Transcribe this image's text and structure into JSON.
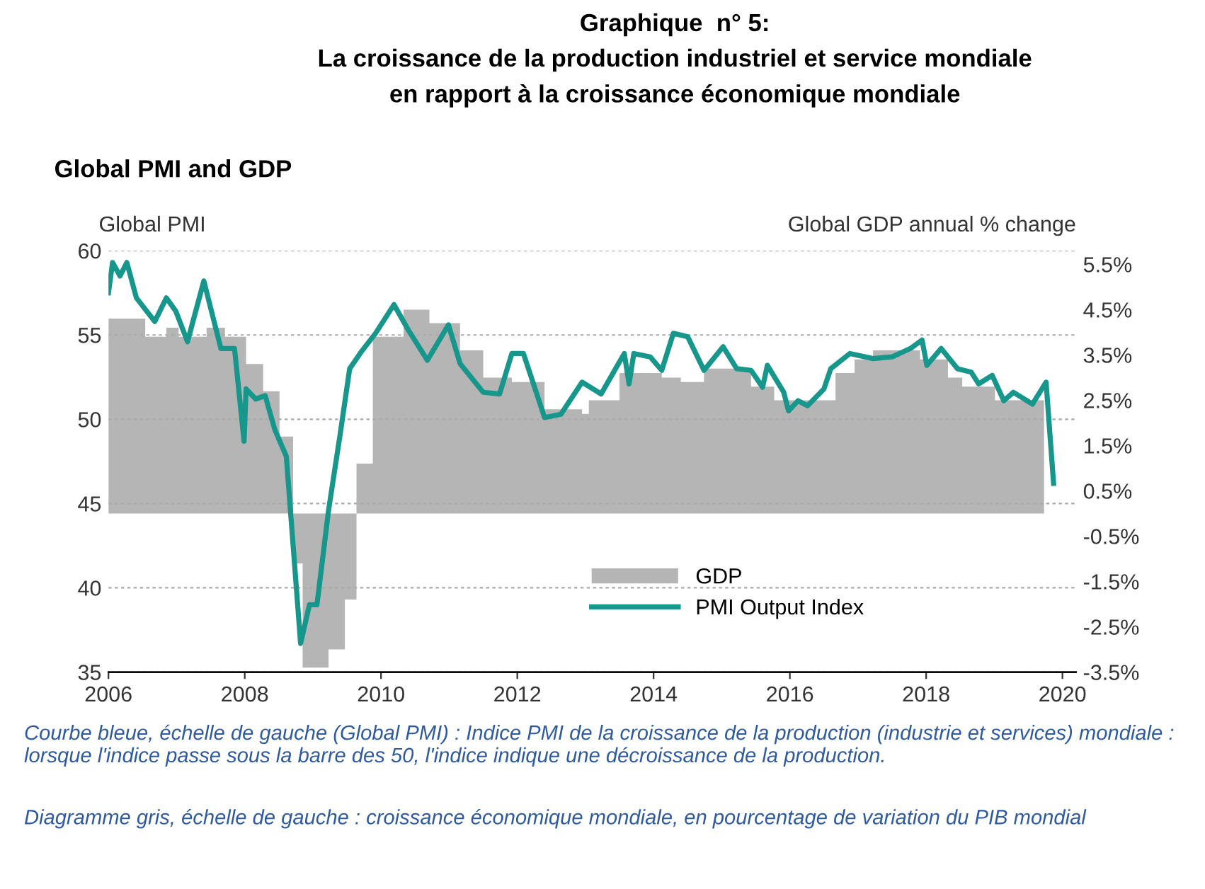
{
  "chart_data": {
    "type": "line",
    "title": "Graphique  n° 5:\nLa croissance de la production industriel et service mondiale\nen rapport à la croissance économique mondiale",
    "subtitle": "Global PMI and GDP",
    "ylabel": "Global PMI",
    "y2label": "Global GDP annual % change",
    "annotations": [
      "Courbe bleue, échelle de gauche (Global PMI) : Indice PMI de la croissance de la production (industrie et services) mondiale : lorsque l'indice passe sous la barre des 50, l'indice indique une décroissance de la production.",
      "Diagramme gris, échelle de gauche : croissance économique mondiale, en pourcentage de variation du PIB mondial"
    ],
    "series": [
      {
        "name": "GDP",
        "type": "area",
        "axis": "y2",
        "color": "#b5b5b5",
        "x": [
          2006.0,
          2006.54,
          2006.54,
          2006.85,
          2006.85,
          2007.03,
          2007.03,
          2007.44,
          2007.44,
          2007.71,
          2007.71,
          2008.02,
          2008.02,
          2008.27,
          2008.27,
          2008.51,
          2008.51,
          2008.71,
          2008.71,
          2008.85,
          2008.85,
          2009.23,
          2009.23,
          2009.47,
          2009.47,
          2009.64,
          2009.64,
          2009.88,
          2009.88,
          2010.33,
          2010.33,
          2010.71,
          2010.71,
          2011.16,
          2011.16,
          2011.5,
          2011.5,
          2011.92,
          2011.92,
          2012.4,
          2012.4,
          2012.95,
          2012.95,
          2013.05,
          2013.05,
          2013.5,
          2013.5,
          2014.12,
          2014.12,
          2014.4,
          2014.4,
          2014.74,
          2014.74,
          2015.43,
          2015.43,
          2015.77,
          2015.77,
          2016.67,
          2016.67,
          2016.95,
          2016.95,
          2017.22,
          2017.22,
          2017.91,
          2017.91,
          2018.32,
          2018.32,
          2018.53,
          2018.53,
          2019.01,
          2019.01,
          2019.73
        ],
        "values": [
          4.3,
          4.3,
          3.9,
          3.9,
          4.1,
          4.1,
          3.9,
          3.9,
          4.1,
          4.1,
          3.9,
          3.9,
          3.3,
          3.3,
          2.7,
          2.7,
          1.7,
          1.7,
          -1.1,
          -1.1,
          -3.4,
          -3.4,
          -3.0,
          -3.0,
          -1.9,
          -1.9,
          1.1,
          1.1,
          3.9,
          3.9,
          4.5,
          4.5,
          4.2,
          4.2,
          3.6,
          3.6,
          3.0,
          3.0,
          2.9,
          2.9,
          2.3,
          2.3,
          2.2,
          2.2,
          2.5,
          2.5,
          3.1,
          3.1,
          3.0,
          3.0,
          2.9,
          2.9,
          3.2,
          3.2,
          2.8,
          2.8,
          2.5,
          2.5,
          3.1,
          3.1,
          3.4,
          3.4,
          3.6,
          3.6,
          3.4,
          3.4,
          3.0,
          3.0,
          2.8,
          2.8,
          2.5,
          2.5
        ]
      },
      {
        "name": "PMI Output Index",
        "color": "#17968c",
        "x": [
          2006.0,
          2006.06,
          2006.17,
          2006.27,
          2006.41,
          2006.68,
          2006.85,
          2006.99,
          2007.16,
          2007.4,
          2007.65,
          2007.85,
          2007.99,
          2008.02,
          2008.16,
          2008.3,
          2008.44,
          2008.61,
          2008.82,
          2008.95,
          2009.06,
          2009.23,
          2009.4,
          2009.54,
          2009.71,
          2009.92,
          2010.19,
          2010.4,
          2010.68,
          2010.99,
          2011.16,
          2011.5,
          2011.74,
          2011.92,
          2012.09,
          2012.4,
          2012.64,
          2012.95,
          2013.23,
          2013.57,
          2013.64,
          2013.71,
          2013.95,
          2014.12,
          2014.29,
          2014.5,
          2014.74,
          2015.02,
          2015.22,
          2015.43,
          2015.6,
          2015.67,
          2015.91,
          2015.98,
          2016.12,
          2016.26,
          2016.5,
          2016.6,
          2016.88,
          2017.22,
          2017.5,
          2017.77,
          2017.94,
          2018.01,
          2018.22,
          2018.46,
          2018.66,
          2018.77,
          2018.97,
          2019.14,
          2019.28,
          2019.56,
          2019.76,
          2019.87
        ],
        "values": [
          57.5,
          59.3,
          58.5,
          59.3,
          57.2,
          55.8,
          57.2,
          56.4,
          54.6,
          58.2,
          54.2,
          54.2,
          48.7,
          51.8,
          51.2,
          51.4,
          49.4,
          47.8,
          36.7,
          39.0,
          39.0,
          44.6,
          49.1,
          53.0,
          54.0,
          55.1,
          56.8,
          55.3,
          53.5,
          55.6,
          53.3,
          51.6,
          51.5,
          53.9,
          53.9,
          50.1,
          50.3,
          52.2,
          51.5,
          53.9,
          52.1,
          53.9,
          53.7,
          52.9,
          55.1,
          54.9,
          52.9,
          54.3,
          53.0,
          52.9,
          51.9,
          53.2,
          51.6,
          50.5,
          51.1,
          50.8,
          51.8,
          53.0,
          53.9,
          53.6,
          53.7,
          54.2,
          54.7,
          53.2,
          54.2,
          53.0,
          52.8,
          52.1,
          52.6,
          51.1,
          51.6,
          50.9,
          52.2,
          46.2
        ]
      }
    ],
    "xlim": [
      2006,
      2020.2
    ],
    "xticks": [
      2006,
      2008,
      2010,
      2012,
      2014,
      2016,
      2018,
      2020
    ],
    "ylim": [
      35,
      60
    ],
    "yticks": [
      35,
      40,
      45,
      50,
      55,
      60
    ],
    "y2lim": [
      -3.5,
      5.8
    ],
    "y2ticks": [
      {
        "value": -3.5,
        "label": "-3.5%"
      },
      {
        "value": -2.5,
        "label": "-2.5%"
      },
      {
        "value": -1.5,
        "label": "-1.5%"
      },
      {
        "value": -0.5,
        "label": "-0.5%"
      },
      {
        "value": 0.5,
        "label": "0.5%"
      },
      {
        "value": 1.5,
        "label": "1.5%"
      },
      {
        "value": 2.5,
        "label": "2.5%"
      },
      {
        "value": 3.5,
        "label": "3.5%"
      },
      {
        "value": 4.5,
        "label": "4.5%"
      },
      {
        "value": 5.5,
        "label": "5.5%"
      }
    ],
    "grid": "y",
    "legend": "bottom"
  }
}
